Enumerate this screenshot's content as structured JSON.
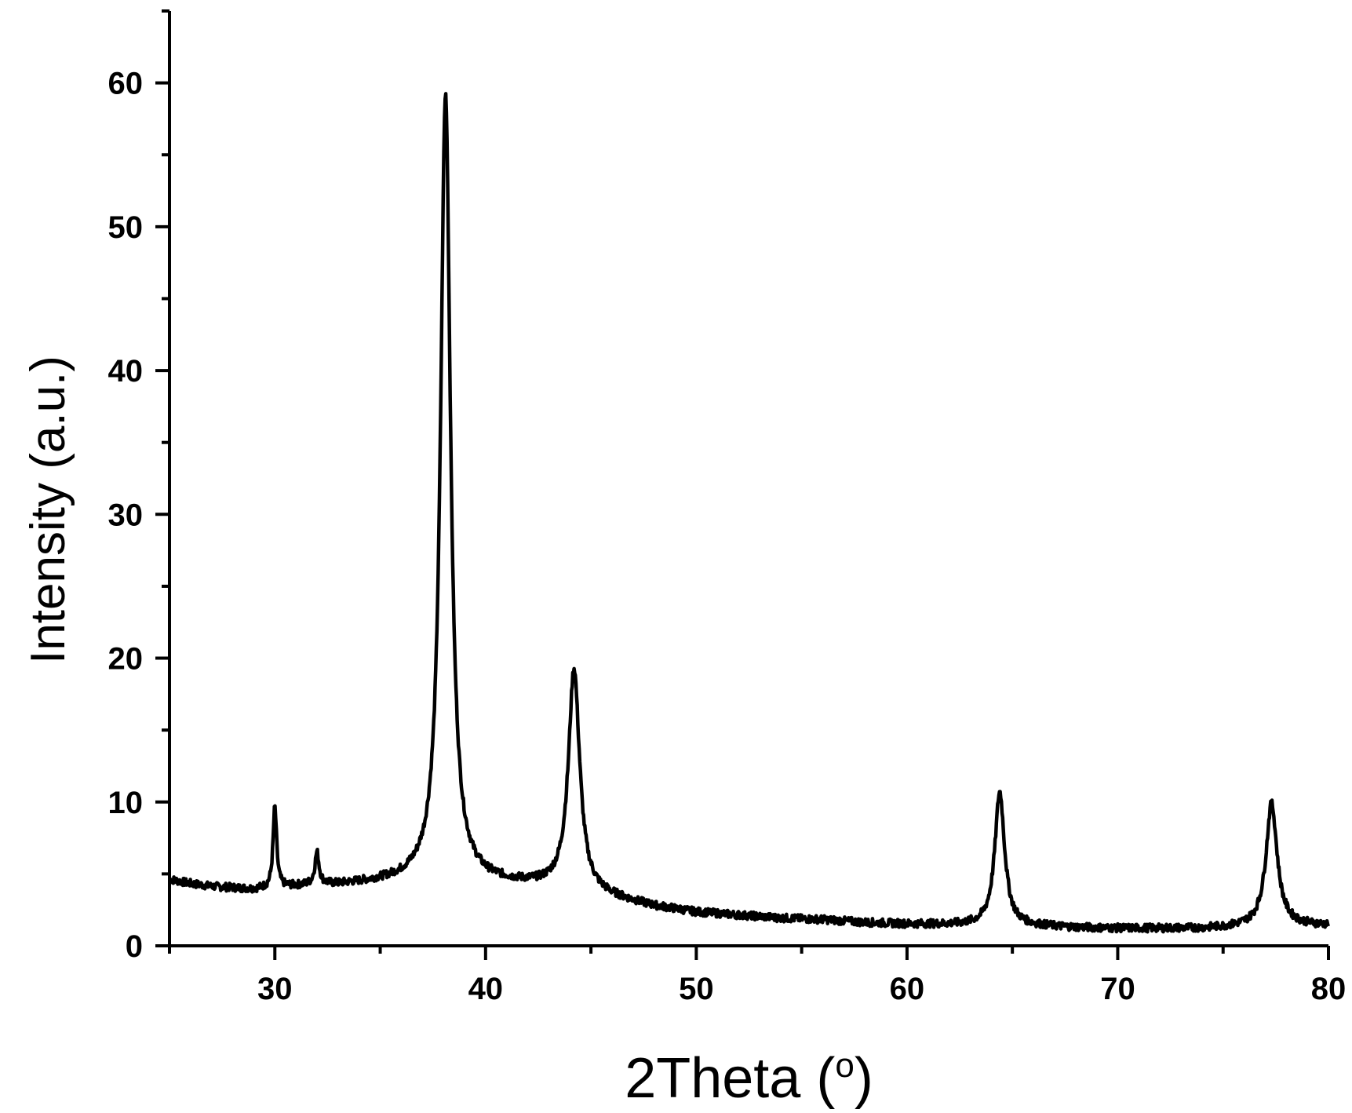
{
  "chart_data": {
    "type": "line",
    "title": "",
    "xlabel": "2Theta (",
    "xlabel_sup": "o",
    "xlabel_close": ")",
    "ylabel": "Intensity (a.u.)",
    "xlim": [
      25,
      80
    ],
    "ylim": [
      0,
      65
    ],
    "x_ticks": [
      30,
      40,
      50,
      60,
      70,
      80
    ],
    "y_ticks": [
      0,
      10,
      20,
      30,
      40,
      50,
      60
    ],
    "grid": false,
    "line_color": "#000000",
    "series": [
      {
        "baseline": [
          [
            25,
            4.6
          ],
          [
            26,
            4.3
          ],
          [
            27,
            4.1
          ],
          [
            28,
            4.0
          ],
          [
            29,
            3.9
          ],
          [
            30,
            4.0
          ],
          [
            31,
            4.1
          ],
          [
            32,
            4.2
          ],
          [
            33,
            4.2
          ],
          [
            34,
            4.3
          ],
          [
            35,
            4.4
          ],
          [
            36,
            4.5
          ],
          [
            37,
            4.6
          ],
          [
            38,
            4.7
          ],
          [
            39,
            4.6
          ],
          [
            40,
            4.4
          ],
          [
            41,
            4.3
          ],
          [
            42,
            4.2
          ],
          [
            43,
            4.1
          ],
          [
            44,
            4.0
          ],
          [
            45,
            3.6
          ],
          [
            46,
            3.3
          ],
          [
            47,
            3.0
          ],
          [
            48,
            2.7
          ],
          [
            49,
            2.5
          ],
          [
            50,
            2.3
          ],
          [
            52,
            2.1
          ],
          [
            54,
            1.9
          ],
          [
            56,
            1.8
          ],
          [
            58,
            1.6
          ],
          [
            60,
            1.5
          ],
          [
            62,
            1.45
          ],
          [
            64,
            1.4
          ],
          [
            66,
            1.35
          ],
          [
            68,
            1.25
          ],
          [
            70,
            1.2
          ],
          [
            72,
            1.2
          ],
          [
            74,
            1.2
          ],
          [
            76,
            1.3
          ],
          [
            78,
            1.4
          ],
          [
            80,
            1.4
          ]
        ],
        "peaks": [
          {
            "position": 30.0,
            "height": 9.6
          },
          {
            "position": 32.0,
            "height": 6.4
          },
          {
            "position": 38.1,
            "height": 59.2
          },
          {
            "position": 44.2,
            "height": 19.2
          },
          {
            "position": 64.4,
            "height": 10.7
          },
          {
            "position": 77.3,
            "height": 9.9
          }
        ]
      }
    ]
  }
}
